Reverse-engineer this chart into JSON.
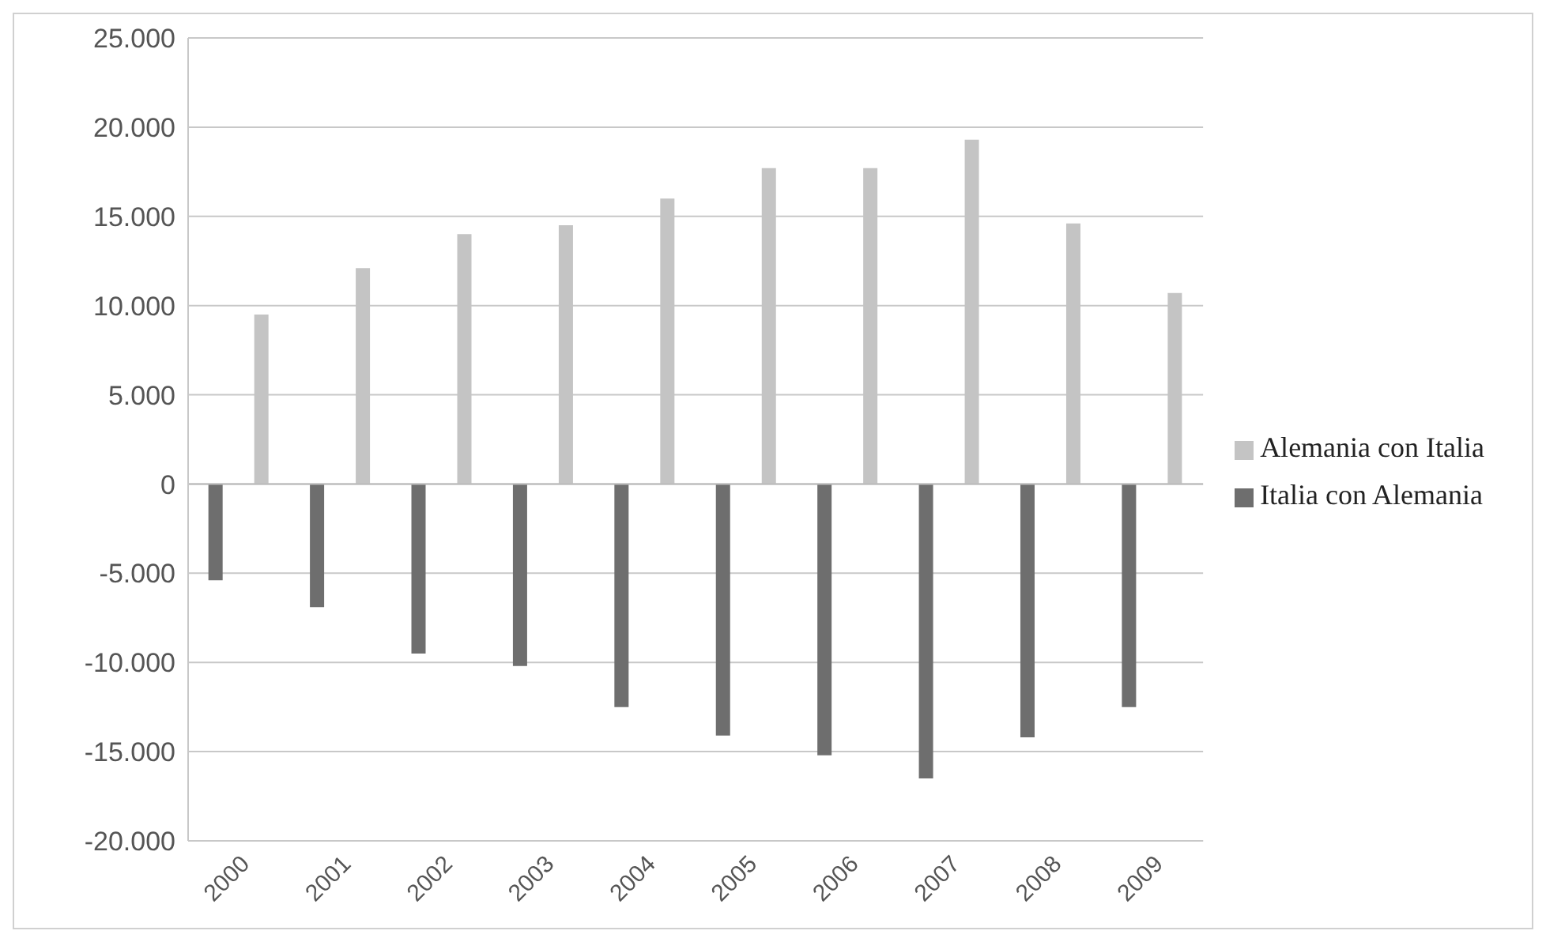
{
  "chart_data": {
    "type": "bar",
    "categories": [
      "2000",
      "2001",
      "2002",
      "2003",
      "2004",
      "2005",
      "2006",
      "2007",
      "2008",
      "2009"
    ],
    "series": [
      {
        "name": "Italia con Alemania",
        "color": "#6e6e6e",
        "values": [
          -5400,
          -6900,
          -9500,
          -10200,
          -12500,
          -14100,
          -15200,
          -16500,
          -14200,
          -12500
        ]
      },
      {
        "name": "Alemania con Italia",
        "color": "#c4c4c4",
        "values": [
          9500,
          12100,
          14000,
          14500,
          16000,
          17700,
          17700,
          19300,
          14600,
          10700
        ]
      }
    ],
    "ylim": [
      -20000,
      25000
    ],
    "yticks": [
      {
        "value": -20000,
        "label": "-20.000"
      },
      {
        "value": -15000,
        "label": "-15.000"
      },
      {
        "value": -10000,
        "label": "-10.000"
      },
      {
        "value": -5000,
        "label": "-5.000"
      },
      {
        "value": 0,
        "label": "0"
      },
      {
        "value": 5000,
        "label": "5.000"
      },
      {
        "value": 10000,
        "label": "10.000"
      },
      {
        "value": 15000,
        "label": "15.000"
      },
      {
        "value": 20000,
        "label": "20.000"
      },
      {
        "value": 25000,
        "label": "25.000"
      }
    ],
    "grid": "y",
    "legend": "right"
  }
}
